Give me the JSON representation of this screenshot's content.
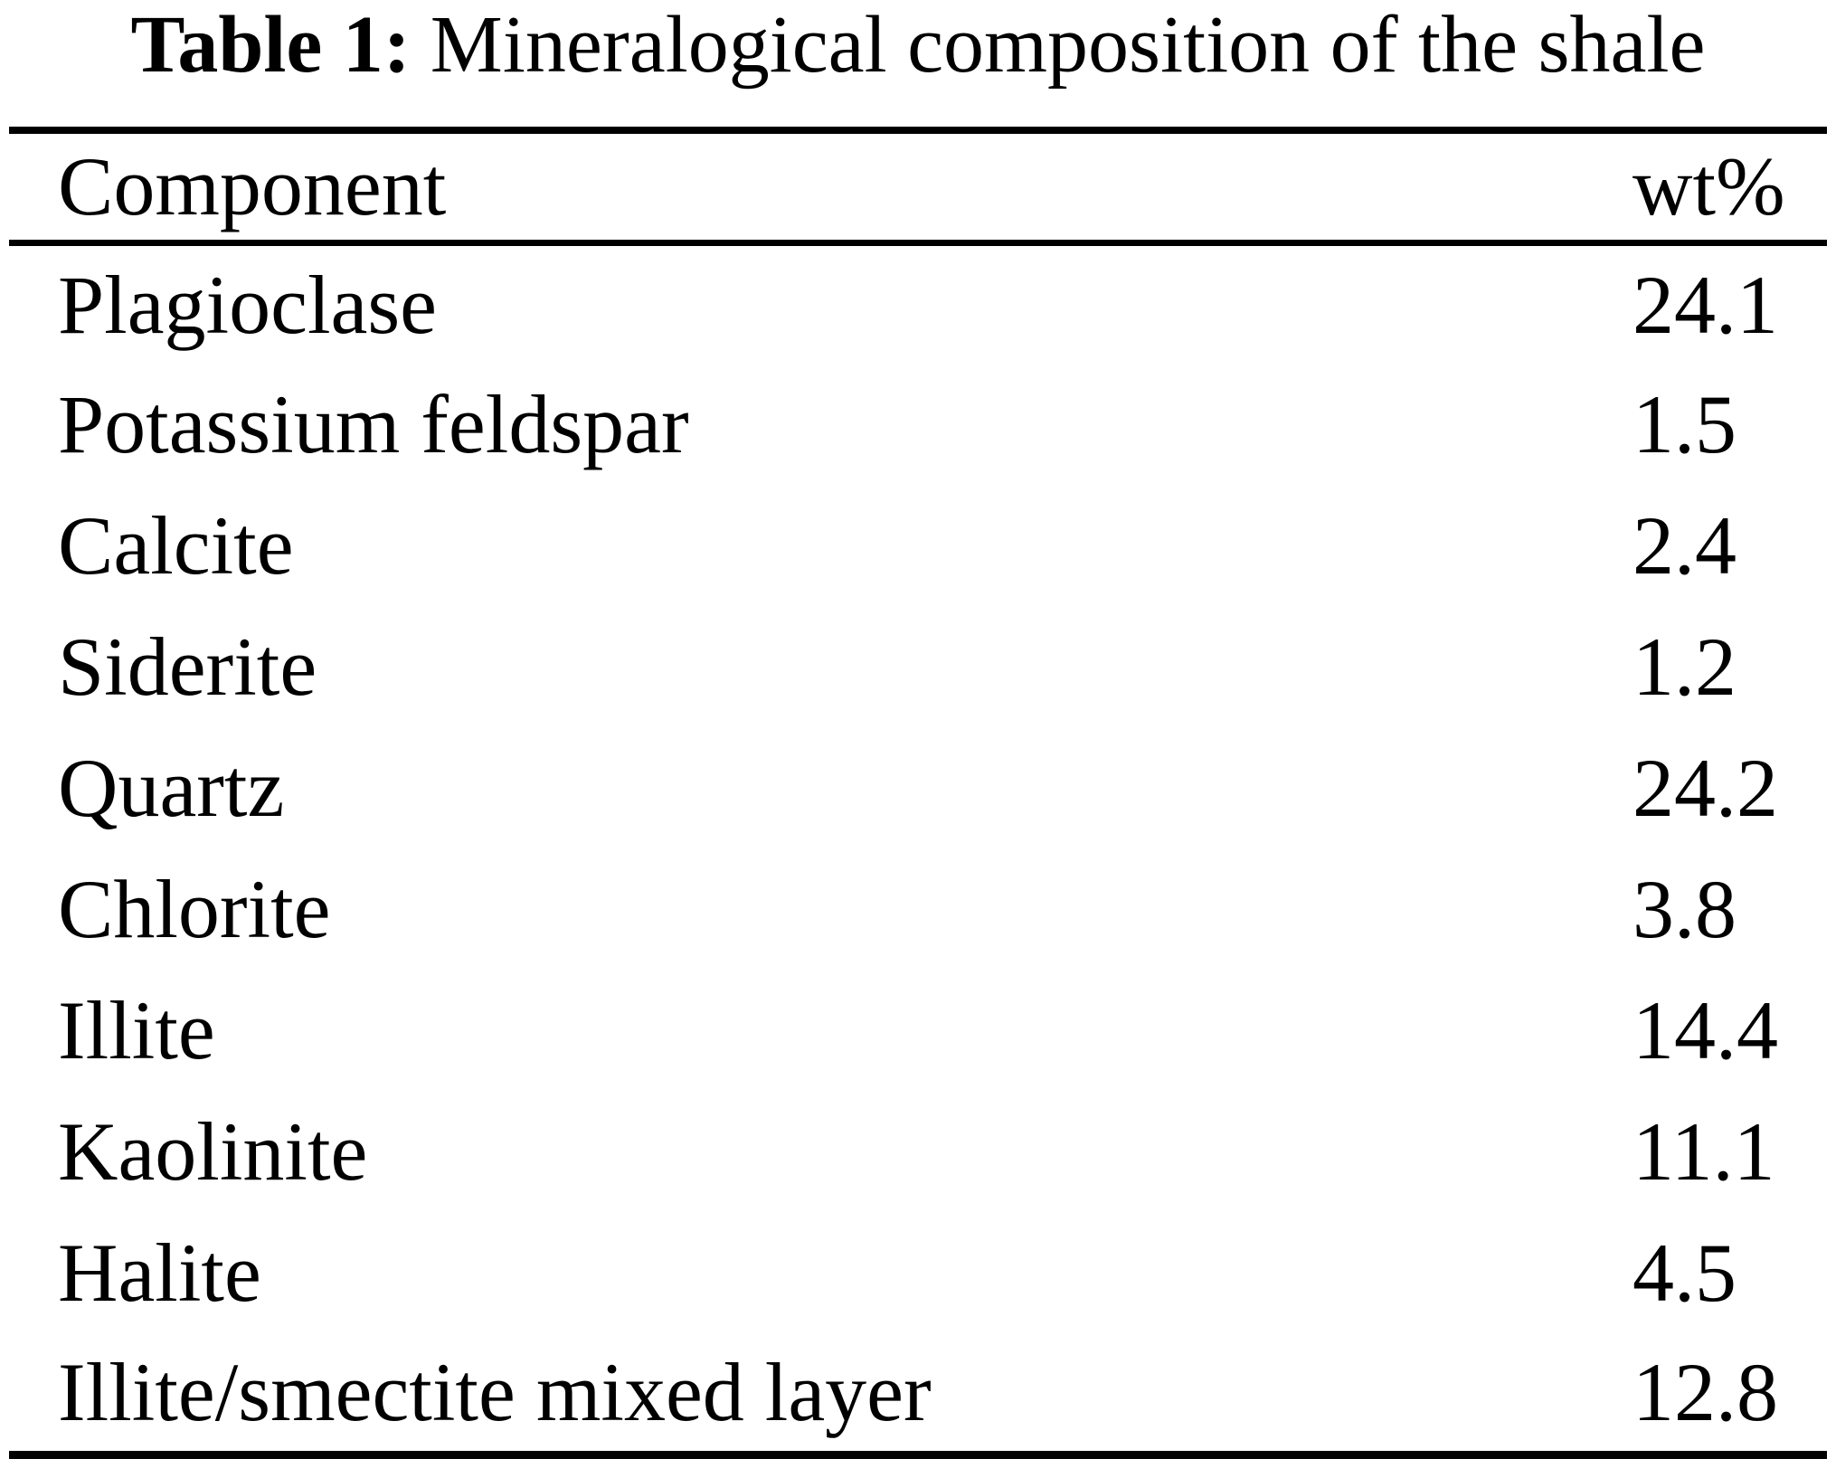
{
  "caption": {
    "label": "Table 1:",
    "text": "Mineralogical composition of the shale"
  },
  "table": {
    "columns": {
      "component": "Component",
      "wt": "wt%"
    },
    "rows": [
      {
        "component": "Plagioclase",
        "wt": "24.1"
      },
      {
        "component": "Potassium feldspar",
        "wt": "1.5"
      },
      {
        "component": "Calcite",
        "wt": "2.4"
      },
      {
        "component": "Siderite",
        "wt": "1.2"
      },
      {
        "component": "Quartz",
        "wt": "24.2"
      },
      {
        "component": "Chlorite",
        "wt": "3.8"
      },
      {
        "component": "Illite",
        "wt": "14.4"
      },
      {
        "component": "Kaolinite",
        "wt": "11.1"
      },
      {
        "component": "Halite",
        "wt": "4.5"
      },
      {
        "component": "Illite/smectite mixed layer",
        "wt": "12.8"
      }
    ]
  }
}
